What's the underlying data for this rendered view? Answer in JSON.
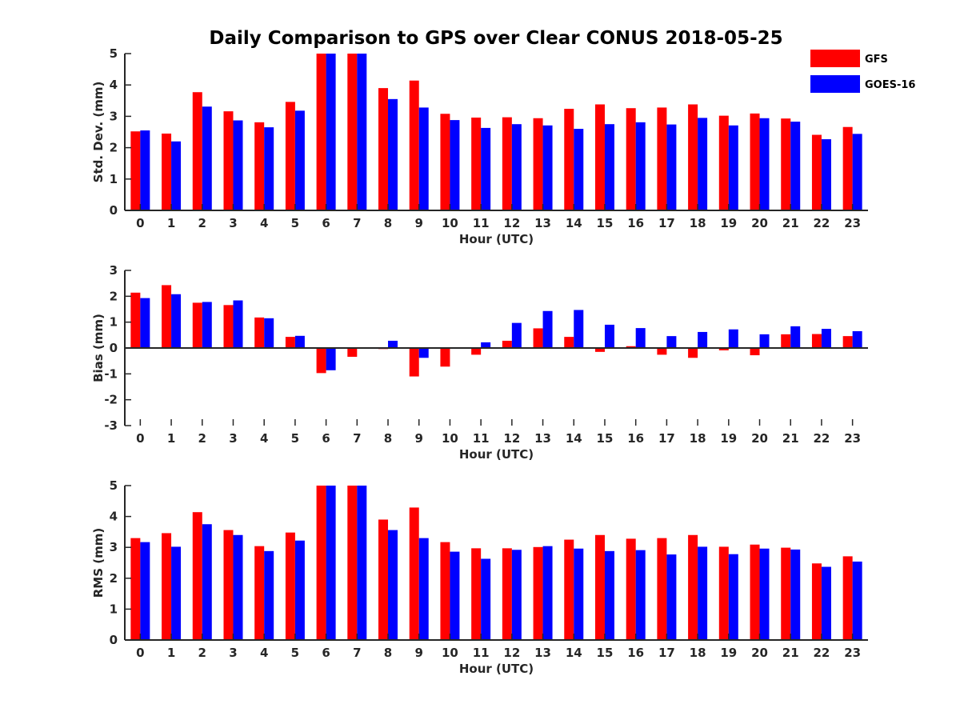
{
  "chart_data": {
    "type": "bar",
    "title": "Daily Comparison to GPS over Clear CONUS 2018-05-25",
    "legend": {
      "placement": "top-right",
      "entries": [
        {
          "name": "GFS",
          "color": "#ff0000"
        },
        {
          "name": "GOES-16",
          "color": "#0000ff"
        }
      ]
    },
    "categories": [
      "0",
      "1",
      "2",
      "3",
      "4",
      "5",
      "6",
      "7",
      "8",
      "9",
      "10",
      "11",
      "12",
      "13",
      "14",
      "15",
      "16",
      "17",
      "18",
      "19",
      "20",
      "21",
      "22",
      "23"
    ],
    "panels": [
      {
        "id": "std",
        "ylabel": "Std. Dev. (mm)",
        "xlabel": "Hour (UTC)",
        "ylim": [
          0,
          5
        ],
        "yticks": [
          "0",
          "1",
          "2",
          "3",
          "4",
          "5"
        ],
        "series": [
          {
            "name": "GFS",
            "values": [
              2.52,
              2.45,
              3.77,
              3.16,
              2.81,
              3.46,
              5.0,
              5.0,
              3.9,
              4.14,
              3.08,
              2.96,
              2.97,
              2.94,
              3.24,
              3.38,
              3.26,
              3.28,
              3.38,
              3.02,
              3.09,
              2.93,
              2.41,
              2.66
            ]
          },
          {
            "name": "GOES-16",
            "values": [
              2.55,
              2.2,
              3.31,
              2.87,
              2.65,
              3.18,
              5.0,
              5.0,
              3.55,
              3.28,
              2.88,
              2.63,
              2.75,
              2.71,
              2.6,
              2.75,
              2.81,
              2.74,
              2.95,
              2.71,
              2.94,
              2.83,
              2.27,
              2.44
            ]
          }
        ]
      },
      {
        "id": "bias",
        "ylabel": "Bias (mm)",
        "xlabel": "Hour (UTC)",
        "ylim": [
          -3,
          3
        ],
        "yticks": [
          "-3",
          "-2",
          "-1",
          "0",
          "1",
          "2",
          "3"
        ],
        "series": [
          {
            "name": "GFS",
            "values": [
              2.14,
              2.43,
              1.75,
              1.66,
              1.18,
              0.43,
              -0.97,
              -0.34,
              -0.04,
              -1.1,
              -0.72,
              -0.26,
              0.28,
              0.76,
              0.43,
              -0.15,
              0.07,
              -0.26,
              -0.38,
              -0.09,
              -0.28,
              0.53,
              0.54,
              0.46
            ]
          },
          {
            "name": "GOES-16",
            "values": [
              1.93,
              2.08,
              1.78,
              1.84,
              1.15,
              0.47,
              -0.86,
              0.0,
              0.28,
              -0.38,
              0.0,
              0.22,
              0.97,
              1.43,
              1.47,
              0.9,
              0.77,
              0.46,
              0.62,
              0.72,
              0.53,
              0.84,
              0.74,
              0.65
            ]
          }
        ]
      },
      {
        "id": "rms",
        "ylabel": "RMS (mm)",
        "xlabel": "Hour (UTC)",
        "ylim": [
          0,
          5
        ],
        "yticks": [
          "0",
          "1",
          "2",
          "3",
          "4",
          "5"
        ],
        "series": [
          {
            "name": "GFS",
            "values": [
              3.3,
              3.46,
              4.14,
              3.56,
              3.04,
              3.48,
              5.0,
              5.0,
              3.9,
              4.29,
              3.17,
              2.97,
              2.97,
              3.01,
              3.25,
              3.4,
              3.28,
              3.3,
              3.4,
              3.02,
              3.09,
              2.99,
              2.48,
              2.71
            ]
          },
          {
            "name": "GOES-16",
            "values": [
              3.17,
              3.02,
              3.75,
              3.4,
              2.88,
              3.22,
              5.0,
              5.0,
              3.56,
              3.3,
              2.86,
              2.63,
              2.92,
              3.04,
              2.96,
              2.88,
              2.91,
              2.77,
              3.02,
              2.78,
              2.96,
              2.93,
              2.37,
              2.54
            ]
          }
        ]
      }
    ]
  }
}
